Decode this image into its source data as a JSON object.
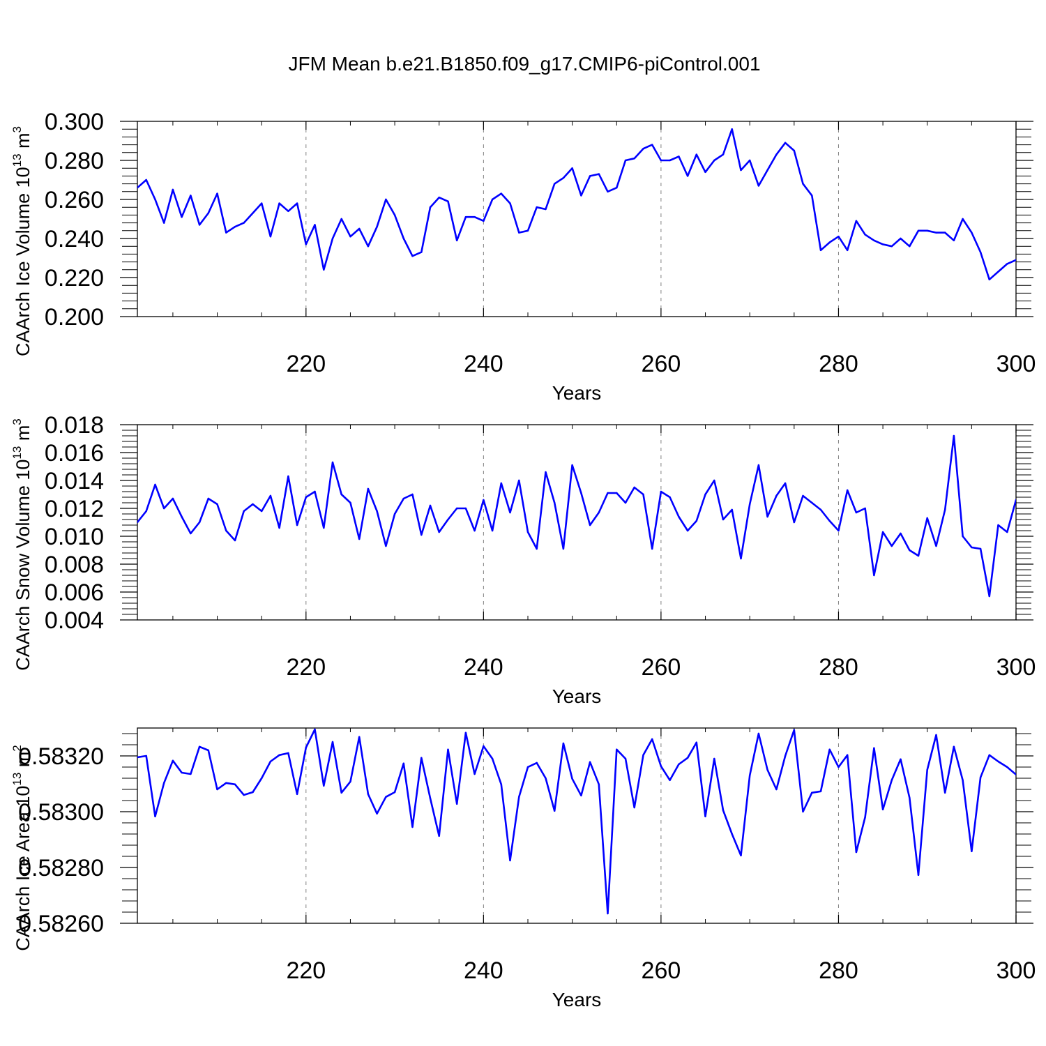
{
  "figure_title": "JFM Mean b.e21.B1850.f09_g17.CMIP6-piControl.001",
  "colors": {
    "series": "#0000ff",
    "axis": "#000000",
    "grid": "#808080"
  },
  "chart_data": [
    {
      "type": "line",
      "ylabel": {
        "main": "CAArch Ice Volume 10",
        "sup": "13",
        "unit": " m",
        "unit_sup": "3"
      },
      "xlabel": "Years",
      "xlim": [
        201,
        300
      ],
      "ylim": [
        0.2,
        0.3
      ],
      "xticks": [
        220,
        240,
        260,
        280,
        300
      ],
      "xtick_labels": [
        "220",
        "240",
        "260",
        "280",
        "300"
      ],
      "yticks": [
        0.2,
        0.22,
        0.24,
        0.26,
        0.28,
        0.3
      ],
      "ytick_labels": [
        "0.200",
        "0.220",
        "0.240",
        "0.260",
        "0.280",
        "0.300"
      ],
      "grid_x": true,
      "x_start": 201,
      "values": [
        0.266,
        0.27,
        0.26,
        0.248,
        0.265,
        0.251,
        0.262,
        0.247,
        0.253,
        0.263,
        0.243,
        0.246,
        0.248,
        0.253,
        0.258,
        0.241,
        0.258,
        0.254,
        0.258,
        0.237,
        0.247,
        0.224,
        0.24,
        0.25,
        0.241,
        0.245,
        0.236,
        0.246,
        0.26,
        0.252,
        0.24,
        0.231,
        0.233,
        0.256,
        0.261,
        0.259,
        0.239,
        0.251,
        0.251,
        0.249,
        0.26,
        0.263,
        0.258,
        0.243,
        0.244,
        0.256,
        0.255,
        0.268,
        0.271,
        0.276,
        0.262,
        0.272,
        0.273,
        0.264,
        0.266,
        0.28,
        0.281,
        0.286,
        0.288,
        0.28,
        0.28,
        0.282,
        0.272,
        0.283,
        0.274,
        0.28,
        0.283,
        0.296,
        0.275,
        0.28,
        0.267,
        0.275,
        0.283,
        0.289,
        0.285,
        0.268,
        0.262,
        0.234,
        0.238,
        0.241,
        0.234,
        0.249,
        0.242,
        0.239,
        0.237,
        0.236,
        0.24,
        0.236,
        0.244,
        0.244,
        0.243,
        0.243,
        0.239,
        0.25,
        0.243,
        0.233,
        0.219,
        0.223,
        0.227,
        0.229
      ]
    },
    {
      "type": "line",
      "ylabel": {
        "main": "CAArch Snow Volume 10",
        "sup": "13",
        "unit": " m",
        "unit_sup": "3"
      },
      "xlabel": "Years",
      "xlim": [
        201,
        300
      ],
      "ylim": [
        0.004,
        0.018
      ],
      "xticks": [
        220,
        240,
        260,
        280,
        300
      ],
      "xtick_labels": [
        "220",
        "240",
        "260",
        "280",
        "300"
      ],
      "yticks": [
        0.004,
        0.006,
        0.008,
        0.01,
        0.012,
        0.014,
        0.016,
        0.018
      ],
      "ytick_labels": [
        "0.004",
        "0.006",
        "0.008",
        "0.010",
        "0.012",
        "0.014",
        "0.016",
        "0.018"
      ],
      "grid_x": true,
      "x_start": 201,
      "values": [
        0.011,
        0.0118,
        0.0137,
        0.012,
        0.0127,
        0.0114,
        0.0102,
        0.011,
        0.0127,
        0.0123,
        0.0104,
        0.0097,
        0.0118,
        0.0123,
        0.0118,
        0.0129,
        0.0106,
        0.0143,
        0.0108,
        0.0128,
        0.0132,
        0.0106,
        0.0153,
        0.013,
        0.0124,
        0.0098,
        0.0134,
        0.0118,
        0.0093,
        0.0116,
        0.0127,
        0.013,
        0.0101,
        0.0122,
        0.0103,
        0.0112,
        0.012,
        0.012,
        0.0104,
        0.0126,
        0.0104,
        0.0138,
        0.0117,
        0.014,
        0.0103,
        0.0091,
        0.0146,
        0.0124,
        0.0091,
        0.0151,
        0.0131,
        0.0108,
        0.0117,
        0.0131,
        0.0131,
        0.0124,
        0.0135,
        0.013,
        0.0091,
        0.0132,
        0.0128,
        0.0114,
        0.0104,
        0.0111,
        0.013,
        0.014,
        0.0112,
        0.0119,
        0.0084,
        0.0123,
        0.0151,
        0.0114,
        0.0129,
        0.0138,
        0.011,
        0.0129,
        0.0124,
        0.0119,
        0.0111,
        0.0104,
        0.0133,
        0.0117,
        0.012,
        0.0072,
        0.0103,
        0.0093,
        0.0102,
        0.009,
        0.0086,
        0.0113,
        0.0093,
        0.0119,
        0.0172,
        0.01,
        0.0092,
        0.0091,
        0.0057,
        0.0108,
        0.0103,
        0.0126
      ]
    },
    {
      "type": "line",
      "ylabel": {
        "main": "CAArch Ice Area 10",
        "sup": "13",
        "unit": " m",
        "unit_sup": "2"
      },
      "xlabel": "Years",
      "xlim": [
        201,
        300
      ],
      "ylim": [
        0.5826,
        0.5833
      ],
      "xticks": [
        220,
        240,
        260,
        280,
        300
      ],
      "xtick_labels": [
        "220",
        "240",
        "260",
        "280",
        "300"
      ],
      "yticks": [
        0.5826,
        0.5828,
        0.583,
        0.5832
      ],
      "ytick_labels": [
        "0.58260",
        "0.58280",
        "0.58300",
        "0.58320"
      ],
      "grid_x": true,
      "x_start": 201,
      "values": [
        0.583195,
        0.5832,
        0.582983,
        0.583103,
        0.583183,
        0.58314,
        0.583135,
        0.583233,
        0.58322,
        0.58308,
        0.583103,
        0.583098,
        0.58306,
        0.58307,
        0.58312,
        0.58318,
        0.583203,
        0.58321,
        0.583063,
        0.58323,
        0.583295,
        0.583093,
        0.58325,
        0.583068,
        0.583108,
        0.583268,
        0.583063,
        0.582993,
        0.583053,
        0.58307,
        0.583173,
        0.582945,
        0.583193,
        0.583048,
        0.582913,
        0.583223,
        0.583028,
        0.583283,
        0.583135,
        0.583235,
        0.58319,
        0.583098,
        0.582825,
        0.583053,
        0.58316,
        0.583175,
        0.58312,
        0.583003,
        0.583245,
        0.583118,
        0.583058,
        0.583178,
        0.583098,
        0.582635,
        0.583223,
        0.58319,
        0.583015,
        0.583203,
        0.58326,
        0.583163,
        0.583113,
        0.58317,
        0.583193,
        0.583248,
        0.582983,
        0.58319,
        0.583005,
        0.58292,
        0.582843,
        0.58313,
        0.58328,
        0.58315,
        0.58308,
        0.5832,
        0.583293,
        0.583,
        0.583068,
        0.583073,
        0.583223,
        0.58316,
        0.583203,
        0.582855,
        0.58298,
        0.583228,
        0.583008,
        0.583113,
        0.583188,
        0.58305,
        0.582773,
        0.58315,
        0.583275,
        0.583068,
        0.583233,
        0.583113,
        0.582858,
        0.583123,
        0.583203,
        0.58318,
        0.58316,
        0.583133
      ]
    }
  ]
}
